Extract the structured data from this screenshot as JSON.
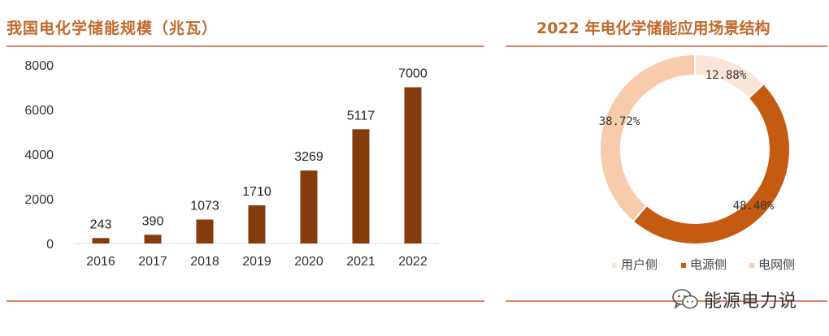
{
  "left_panel": {
    "title": "我国电化学储能规模（兆瓦）"
  },
  "right_panel": {
    "title": "2022 年电化学储能应用场景结构"
  },
  "watermark": {
    "text": "能源电力说"
  },
  "chart_data": [
    {
      "type": "bar",
      "title": "我国电化学储能规模（兆瓦）",
      "categories": [
        "2016",
        "2017",
        "2018",
        "2019",
        "2020",
        "2021",
        "2022"
      ],
      "values": [
        243,
        390,
        1073,
        1710,
        3269,
        5117,
        7000
      ],
      "data_labels": [
        "243",
        "390",
        "1073",
        "1710",
        "3269",
        "5117",
        "7000"
      ],
      "yticks": [
        "0",
        "2000",
        "4000",
        "6000",
        "8000"
      ],
      "ytick_values": [
        0,
        2000,
        4000,
        6000,
        8000
      ],
      "ylim": [
        0,
        8000
      ],
      "bar_color": "#843c0c",
      "grid": false,
      "legend": "none"
    },
    {
      "type": "pie",
      "title": "2022 年电化学储能应用场景结构",
      "donut": true,
      "labels": [
        "用户侧",
        "电源侧",
        "电网侧"
      ],
      "values": [
        12.88,
        48.4,
        38.72
      ],
      "data_labels": [
        "12.88%",
        "48.40%",
        "38.72%"
      ],
      "colors": [
        "#fbe5d6",
        "#c55a11",
        "#f8cbad"
      ],
      "legend": "bottom"
    }
  ]
}
